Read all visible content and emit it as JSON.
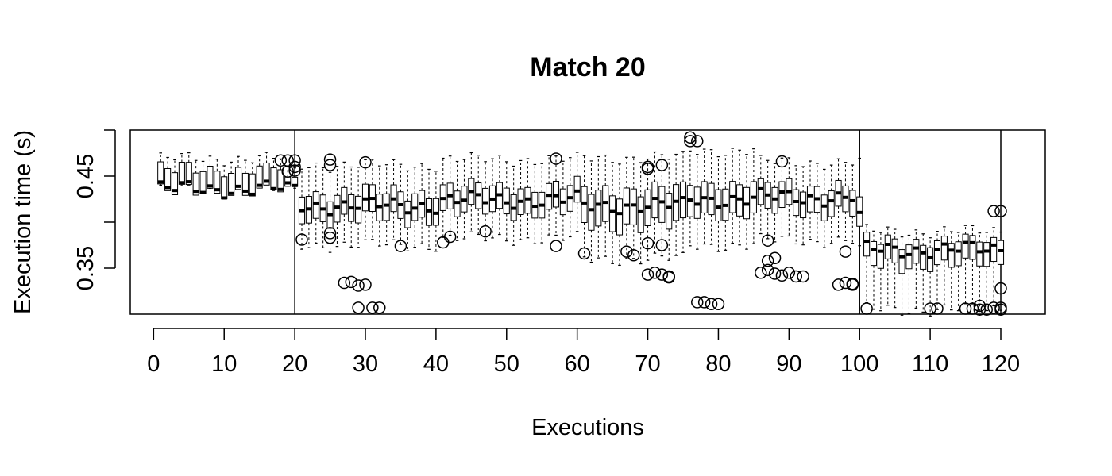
{
  "chart_data": {
    "type": "box",
    "title": "Match 20",
    "xlabel": "Executions",
    "ylabel": "Execution time (s)",
    "xlim": [
      -3.3,
      126.3
    ],
    "ylim": [
      0.3,
      0.5
    ],
    "x_ticks": [
      0,
      10,
      20,
      30,
      40,
      50,
      60,
      70,
      80,
      90,
      100,
      110,
      120
    ],
    "x_tick_labels": [
      "0",
      "10",
      "20",
      "30",
      "40",
      "50",
      "60",
      "70",
      "80",
      "90",
      "100",
      "110",
      "120"
    ],
    "y_ticks": [
      0.35,
      0.4,
      0.45,
      0.5
    ],
    "y_tick_labels": [
      "0.35",
      "",
      "0.45",
      ""
    ],
    "vlines": [
      20,
      100,
      120
    ],
    "grid": false,
    "legend": "none",
    "segments": [
      {
        "start": 1,
        "end": 18,
        "median": 0.436,
        "q1": 0.435,
        "q3": 0.455,
        "whisker_low": 0.434,
        "whisker_high": 0.469,
        "outliers": []
      },
      {
        "start": 19,
        "end": 20,
        "median": 0.435,
        "q1": 0.434,
        "q3": 0.44,
        "whisker_low": 0.433,
        "whisker_high": 0.455,
        "outliers": [
          [
            18,
            0.467
          ],
          [
            19,
            0.467
          ],
          [
            19,
            0.455
          ],
          [
            20,
            0.467
          ],
          [
            20,
            0.46
          ],
          [
            20,
            0.456
          ]
        ]
      },
      {
        "start": 21,
        "end": 40,
        "median": 0.418,
        "q1": 0.405,
        "q3": 0.43,
        "whisker_low": 0.375,
        "whisker_high": 0.462,
        "outliers": [
          [
            21,
            0.381
          ],
          [
            25,
            0.468
          ],
          [
            25,
            0.462
          ],
          [
            25,
            0.388
          ],
          [
            25,
            0.383
          ],
          [
            27,
            0.334
          ],
          [
            28,
            0.335
          ],
          [
            29,
            0.331
          ],
          [
            29,
            0.307
          ],
          [
            30,
            0.465
          ],
          [
            30,
            0.332
          ],
          [
            31,
            0.307
          ],
          [
            32,
            0.307
          ],
          [
            35,
            0.374
          ]
        ]
      },
      {
        "start": 41,
        "end": 60,
        "median": 0.424,
        "q1": 0.412,
        "q3": 0.436,
        "whisker_low": 0.382,
        "whisker_high": 0.468,
        "outliers": [
          [
            41,
            0.378
          ],
          [
            42,
            0.384
          ],
          [
            47,
            0.39
          ],
          [
            57,
            0.469
          ],
          [
            57,
            0.374
          ]
        ]
      },
      {
        "start": 61,
        "end": 75,
        "median": 0.418,
        "q1": 0.398,
        "q3": 0.433,
        "whisker_low": 0.36,
        "whisker_high": 0.47,
        "outliers": [
          [
            61,
            0.366
          ],
          [
            67,
            0.368
          ],
          [
            68,
            0.364
          ],
          [
            70,
            0.46
          ],
          [
            70,
            0.458
          ],
          [
            70,
            0.377
          ],
          [
            70,
            0.343
          ],
          [
            71,
            0.345
          ],
          [
            72,
            0.462
          ],
          [
            72,
            0.375
          ],
          [
            72,
            0.343
          ],
          [
            73,
            0.341
          ],
          [
            73,
            0.34
          ]
        ]
      },
      {
        "start": 76,
        "end": 85,
        "median": 0.425,
        "q1": 0.41,
        "q3": 0.44,
        "whisker_low": 0.375,
        "whisker_high": 0.478,
        "outliers": [
          [
            76,
            0.492
          ],
          [
            76,
            0.488
          ],
          [
            77,
            0.488
          ],
          [
            77,
            0.313
          ],
          [
            78,
            0.313
          ],
          [
            79,
            0.311
          ],
          [
            80,
            0.311
          ]
        ]
      },
      {
        "start": 86,
        "end": 99,
        "median": 0.427,
        "q1": 0.413,
        "q3": 0.437,
        "whisker_low": 0.38,
        "whisker_high": 0.465,
        "outliers": [
          [
            86,
            0.345
          ],
          [
            87,
            0.38
          ],
          [
            87,
            0.358
          ],
          [
            87,
            0.348
          ],
          [
            88,
            0.361
          ],
          [
            88,
            0.344
          ],
          [
            89,
            0.466
          ],
          [
            89,
            0.342
          ],
          [
            90,
            0.345
          ],
          [
            91,
            0.341
          ],
          [
            92,
            0.341
          ],
          [
            97,
            0.332
          ],
          [
            98,
            0.368
          ],
          [
            98,
            0.334
          ],
          [
            99,
            0.333
          ],
          [
            99,
            0.332
          ]
        ]
      },
      {
        "start": 100,
        "end": 100,
        "median": 0.405,
        "q1": 0.39,
        "q3": 0.418,
        "whisker_low": 0.37,
        "whisker_high": 0.465,
        "outliers": []
      },
      {
        "start": 101,
        "end": 120,
        "median": 0.37,
        "q1": 0.355,
        "q3": 0.377,
        "whisker_low": 0.305,
        "whisker_high": 0.39,
        "outliers": [
          [
            101,
            0.306
          ],
          [
            110,
            0.306
          ],
          [
            111,
            0.306
          ],
          [
            115,
            0.306
          ],
          [
            116,
            0.306
          ],
          [
            117,
            0.309
          ],
          [
            117,
            0.305
          ],
          [
            118,
            0.305
          ],
          [
            119,
            0.307
          ],
          [
            119,
            0.412
          ],
          [
            120,
            0.412
          ],
          [
            120,
            0.307
          ],
          [
            120,
            0.305
          ],
          [
            120,
            0.328
          ]
        ]
      }
    ]
  }
}
